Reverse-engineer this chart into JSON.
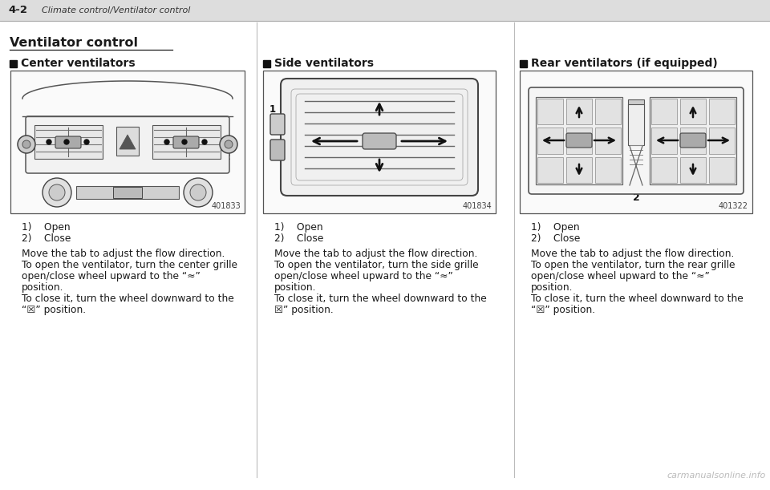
{
  "bg_color": "#ffffff",
  "header_bg": "#dddddd",
  "header_text": "4-2",
  "header_subtitle": "Climate control/Ventilator control",
  "page_title": "Ventilator control",
  "col1_heading": "Center ventilators",
  "col2_heading": "Side ventilators",
  "col3_heading": "Rear ventilators (if equipped)",
  "img1_code": "401833",
  "img2_code": "401834",
  "img3_code": "401322",
  "col1_item1": "1)    Open",
  "col1_item2": "2)    Close",
  "col2_item1": "1)    Open",
  "col2_item2": "2)    Close",
  "col3_item1": "1)    Open",
  "col3_item2": "2)    Close",
  "col1_line1": "Move the tab to adjust the flow direction.",
  "col1_line2": "To open the ventilator, turn the center grille",
  "col1_line3": "open/close wheel upward to the “≈”",
  "col1_line4": "position.",
  "col1_line5": "To close it, turn the wheel downward to the",
  "col1_line6": "“☒” position.",
  "col2_line1": "Move the tab to adjust the flow direction.",
  "col2_line2": "To open the ventilator, turn the side grille",
  "col2_line3": "open/close wheel upward to the “≈”",
  "col2_line4": "position.",
  "col2_line5": "To close it, turn the wheel downward to the",
  "col2_line6": "☒” position.",
  "col3_line1": "Move the tab to adjust the flow direction.",
  "col3_line2": "To open the ventilator, turn the rear grille",
  "col3_line3": "open/close wheel upward to the “≈”",
  "col3_line4": "position.",
  "col3_line5": "To close it, turn the wheel downward to the",
  "col3_line6": "“☒” position.",
  "watermark": "carmanualsonline.info",
  "text_color": "#1a1a1a",
  "light_gray": "#cccccc",
  "mid_gray": "#999999",
  "dark_gray": "#444444",
  "arrow_color": "#111111"
}
